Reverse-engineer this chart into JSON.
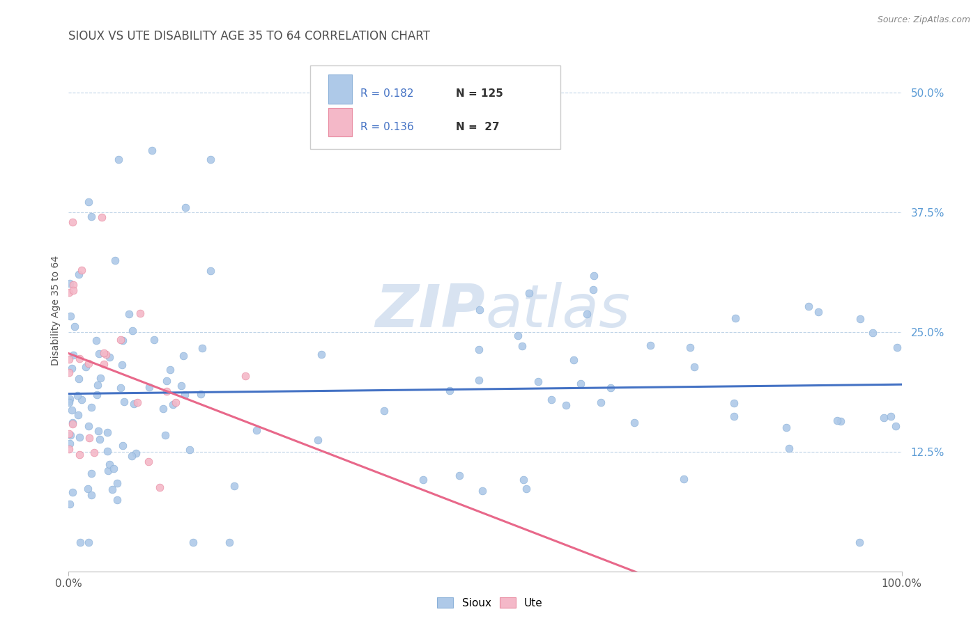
{
  "title": "SIOUX VS UTE DISABILITY AGE 35 TO 64 CORRELATION CHART",
  "source": "Source: ZipAtlas.com",
  "ylabel": "Disability Age 35 to 64",
  "xlim": [
    0.0,
    1.0
  ],
  "ylim": [
    0.0,
    0.545
  ],
  "yticks": [
    0.125,
    0.25,
    0.375,
    0.5
  ],
  "ytick_labels": [
    "12.5%",
    "25.0%",
    "37.5%",
    "50.0%"
  ],
  "sioux_color": "#aec9e8",
  "sioux_edge_color": "#8ab0d8",
  "ute_color": "#f4b8c8",
  "ute_edge_color": "#e88aa0",
  "trendline_sioux_color": "#4472c4",
  "trendline_ute_color": "#e8688a",
  "background_color": "#ffffff",
  "grid_color": "#c0d4e8",
  "ytick_color": "#5b9bd5",
  "watermark_color": "#c8d8ec",
  "title_color": "#505050",
  "source_color": "#888888",
  "legend_R_color": "#4472c4",
  "legend_N_color": "#333333",
  "marker_size": 60,
  "marker_alpha": 0.9,
  "title_fontsize": 12,
  "axis_label_fontsize": 10,
  "tick_fontsize": 11,
  "legend_fontsize": 11
}
